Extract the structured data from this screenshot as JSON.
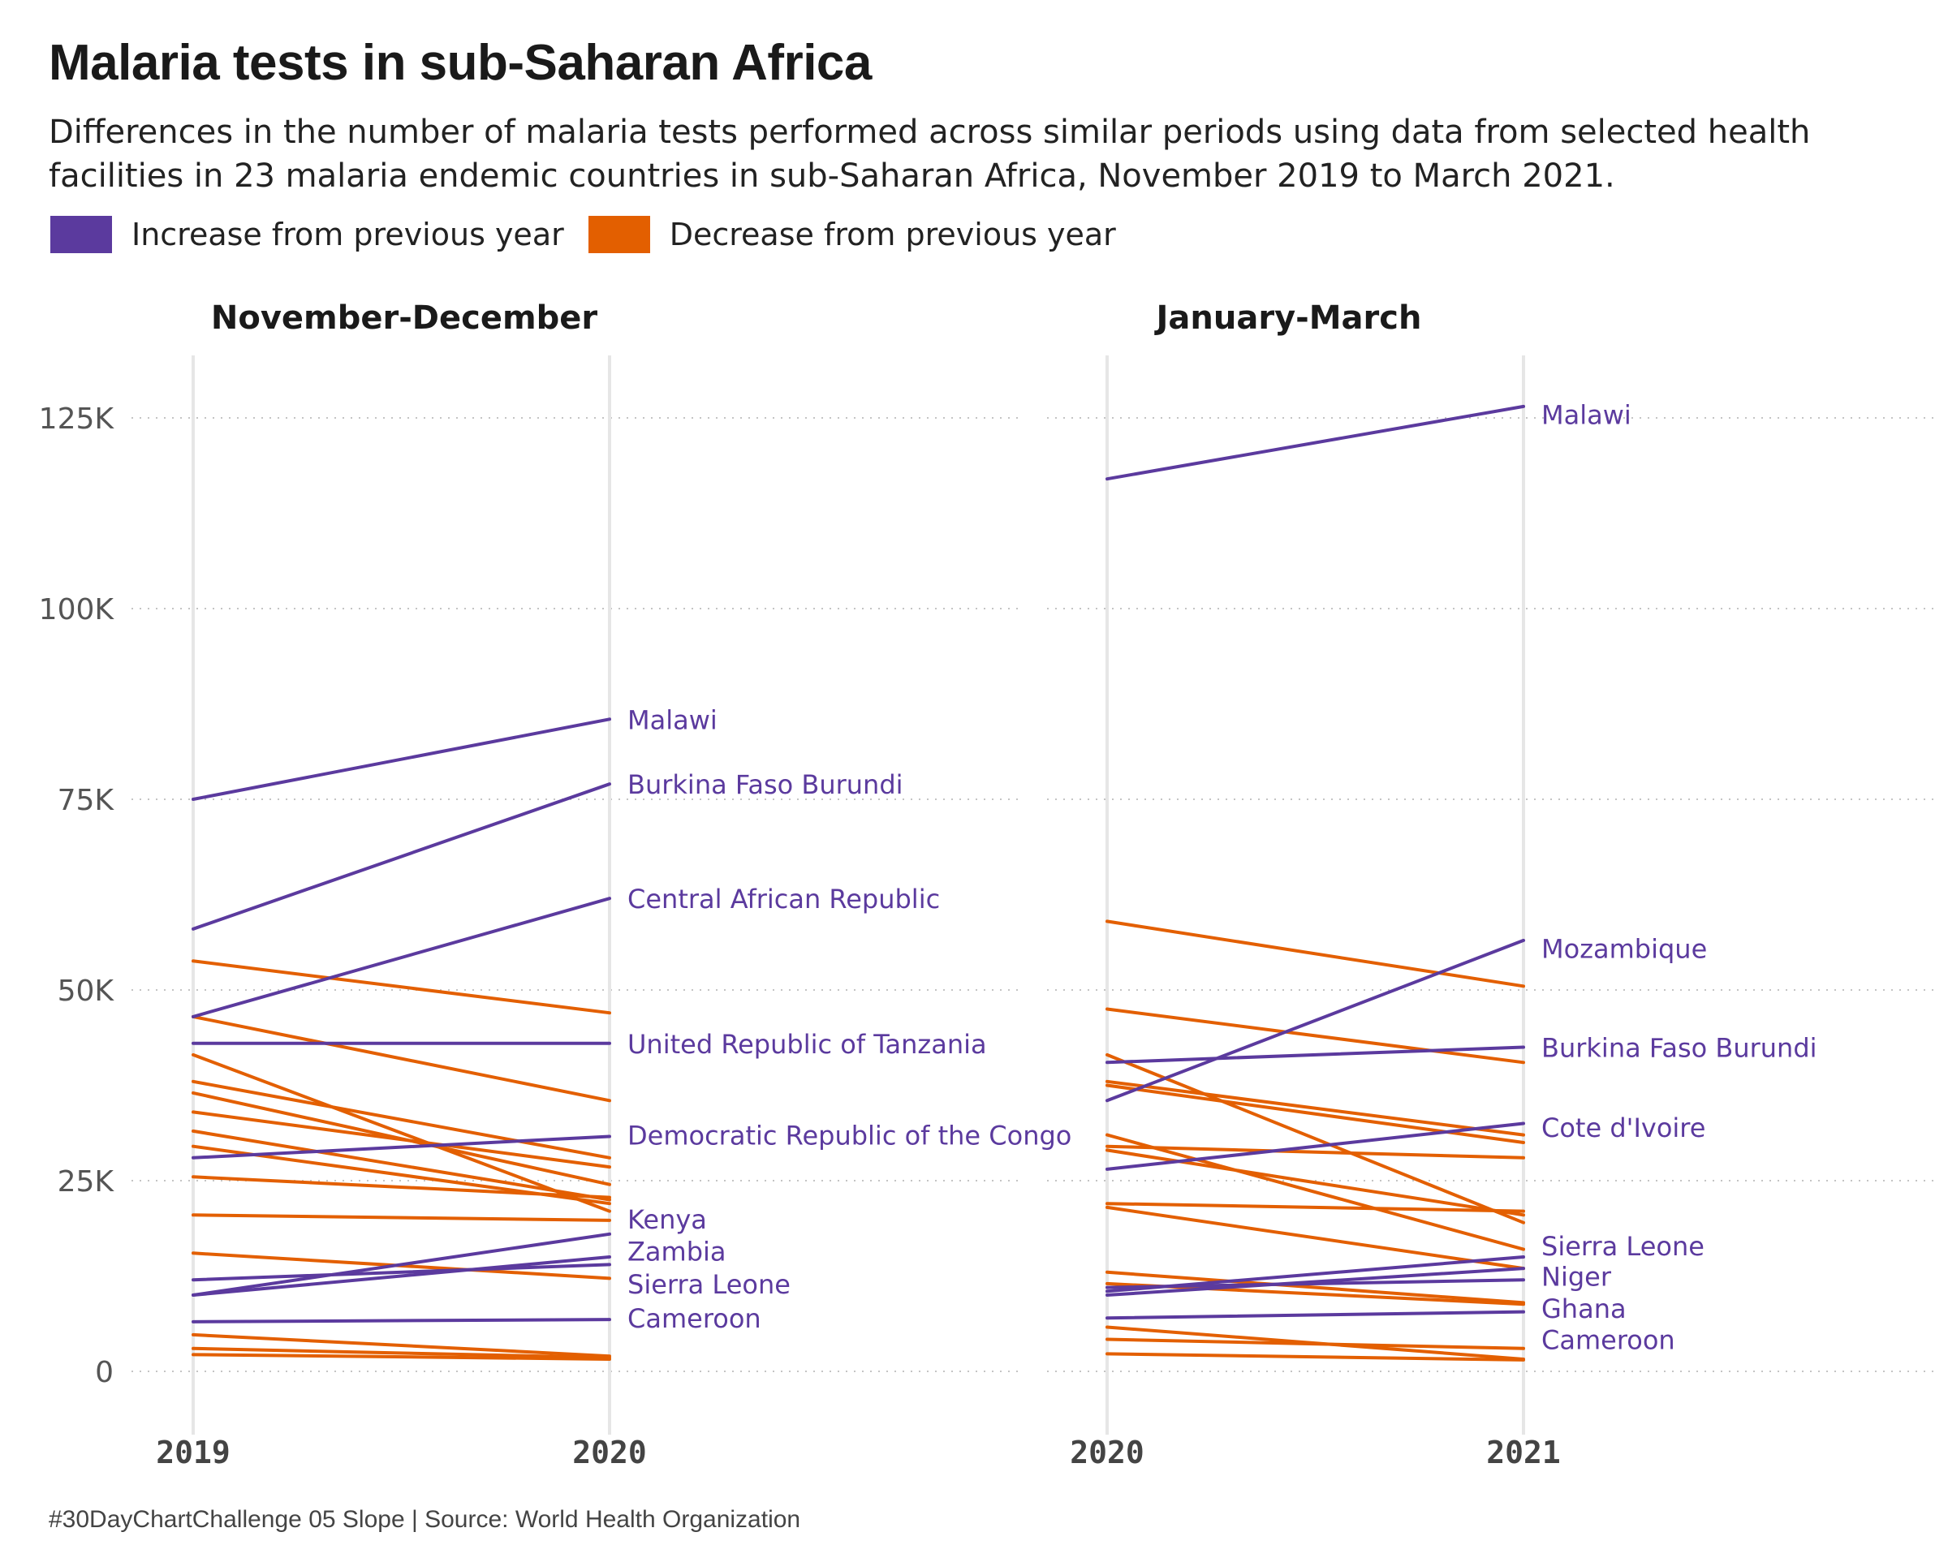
{
  "title": "Malaria tests in sub-Saharan Africa",
  "subtitle": "Differences in the number of malaria tests performed across similar periods using data from selected health facilities in 23 malaria endemic countries in sub-Saharan Africa, November 2019 to March 2021.",
  "caption": "#30DayChartChallenge 05 Slope | Source: World Health Organization",
  "legend": {
    "increase_label": "Increase from previous year",
    "decrease_label": "Decrease from previous year",
    "increase_color": "#5b3a9e",
    "decrease_color": "#e35f00"
  },
  "chart_data": [
    {
      "type": "line",
      "panel_title": "November-December",
      "x": [
        "2019",
        "2020"
      ],
      "ylim": [
        -4000,
        133000
      ],
      "yticks": [
        0,
        25000,
        50000,
        75000,
        100000,
        125000
      ],
      "ytick_labels": [
        "0",
        "25K",
        "50K",
        "75K",
        "100K",
        "125K"
      ],
      "grid": "horizontal dotted",
      "series": [
        {
          "values": [
            75000,
            85500
          ],
          "direction": "increase",
          "name": "Malawi"
        },
        {
          "values": [
            58000,
            77000
          ],
          "direction": "increase",
          "name": "Burkina Faso Burundi"
        },
        {
          "values": [
            46500,
            62000
          ],
          "direction": "increase",
          "name": "Central African Republic"
        },
        {
          "values": [
            43000,
            43000
          ],
          "direction": "increase",
          "name": "United Republic of Tanzania"
        },
        {
          "values": [
            28000,
            30800
          ],
          "direction": "increase",
          "name": "Democratic Republic of the Congo"
        },
        {
          "values": [
            10000,
            18000
          ],
          "direction": "increase",
          "name": "Kenya"
        },
        {
          "values": [
            10000,
            15000
          ],
          "direction": "increase",
          "name": "Zambia"
        },
        {
          "values": [
            12000,
            14000
          ],
          "direction": "increase"
        },
        {
          "values": [
            6500,
            6800
          ],
          "direction": "increase",
          "name": "Cameroon"
        },
        {
          "values": [
            53800,
            47000
          ],
          "direction": "decrease"
        },
        {
          "values": [
            46500,
            35500
          ],
          "direction": "decrease"
        },
        {
          "values": [
            41500,
            21000
          ],
          "direction": "decrease"
        },
        {
          "values": [
            38000,
            28000
          ],
          "direction": "decrease"
        },
        {
          "values": [
            36500,
            24500
          ],
          "direction": "decrease"
        },
        {
          "values": [
            34000,
            26800
          ],
          "direction": "decrease"
        },
        {
          "values": [
            31500,
            22500
          ],
          "direction": "decrease"
        },
        {
          "values": [
            29500,
            22000
          ],
          "direction": "decrease"
        },
        {
          "values": [
            25500,
            22800
          ],
          "direction": "decrease"
        },
        {
          "values": [
            20500,
            19800
          ],
          "direction": "decrease"
        },
        {
          "values": [
            15500,
            12200
          ],
          "direction": "decrease",
          "name": "Sierra Leone"
        },
        {
          "values": [
            4800,
            2000
          ],
          "direction": "decrease"
        },
        {
          "values": [
            3000,
            1800
          ],
          "direction": "decrease"
        },
        {
          "values": [
            2200,
            1600
          ],
          "direction": "decrease"
        }
      ],
      "labels": [
        {
          "text": "Malawi",
          "value": 85500
        },
        {
          "text": "Burkina Faso Burundi",
          "value": 77000
        },
        {
          "text": "Central African Republic",
          "value": 62000
        },
        {
          "text": "United Republic of Tanzania",
          "value": 43000
        },
        {
          "text": "Democratic Republic of the Congo",
          "value": 31000
        },
        {
          "text": "Kenya",
          "value": 20000
        },
        {
          "text": "Zambia",
          "value": 15800
        },
        {
          "text": "Sierra Leone",
          "value": 11500
        },
        {
          "text": "Cameroon",
          "value": 7000
        }
      ]
    },
    {
      "type": "line",
      "panel_title": "January-March",
      "x": [
        "2020",
        "2021"
      ],
      "ylim": [
        -4000,
        133000
      ],
      "grid": "horizontal dotted",
      "series": [
        {
          "values": [
            117000,
            126500
          ],
          "direction": "increase",
          "name": "Malawi"
        },
        {
          "values": [
            35500,
            56500
          ],
          "direction": "increase",
          "name": "Mozambique"
        },
        {
          "values": [
            40500,
            42500
          ],
          "direction": "increase",
          "name": "Burkina Faso Burundi"
        },
        {
          "values": [
            26500,
            32500
          ],
          "direction": "increase",
          "name": "Cote d'Ivoire"
        },
        {
          "values": [
            10500,
            15000
          ],
          "direction": "increase"
        },
        {
          "values": [
            10000,
            13500
          ],
          "direction": "increase"
        },
        {
          "values": [
            11000,
            12000
          ],
          "direction": "increase"
        },
        {
          "values": [
            7000,
            7800
          ],
          "direction": "increase"
        },
        {
          "values": [
            59000,
            50500
          ],
          "direction": "decrease"
        },
        {
          "values": [
            47500,
            40500
          ],
          "direction": "decrease"
        },
        {
          "values": [
            41500,
            19500
          ],
          "direction": "decrease"
        },
        {
          "values": [
            38000,
            31000
          ],
          "direction": "decrease"
        },
        {
          "values": [
            37500,
            30000
          ],
          "direction": "decrease"
        },
        {
          "values": [
            31000,
            16000
          ],
          "direction": "decrease"
        },
        {
          "values": [
            29500,
            28000
          ],
          "direction": "decrease"
        },
        {
          "values": [
            29000,
            20500
          ],
          "direction": "decrease"
        },
        {
          "values": [
            22000,
            21000
          ],
          "direction": "decrease"
        },
        {
          "values": [
            21500,
            13500
          ],
          "direction": "decrease"
        },
        {
          "values": [
            13000,
            9000
          ],
          "direction": "decrease"
        },
        {
          "values": [
            11500,
            8800
          ],
          "direction": "decrease"
        },
        {
          "values": [
            5800,
            1600
          ],
          "direction": "decrease"
        },
        {
          "values": [
            4200,
            3000
          ],
          "direction": "decrease"
        },
        {
          "values": [
            2300,
            1500
          ],
          "direction": "decrease"
        }
      ],
      "labels": [
        {
          "text": "Malawi",
          "value": 125500
        },
        {
          "text": "Mozambique",
          "value": 55500
        },
        {
          "text": "Burkina Faso Burundi",
          "value": 42500
        },
        {
          "text": "Cote d'Ivoire",
          "value": 32000
        },
        {
          "text": "Sierra Leone",
          "value": 16500
        },
        {
          "text": "Niger",
          "value": 12500
        },
        {
          "text": "Ghana",
          "value": 8300
        },
        {
          "text": "Cameroon",
          "value": 4200
        }
      ]
    }
  ]
}
